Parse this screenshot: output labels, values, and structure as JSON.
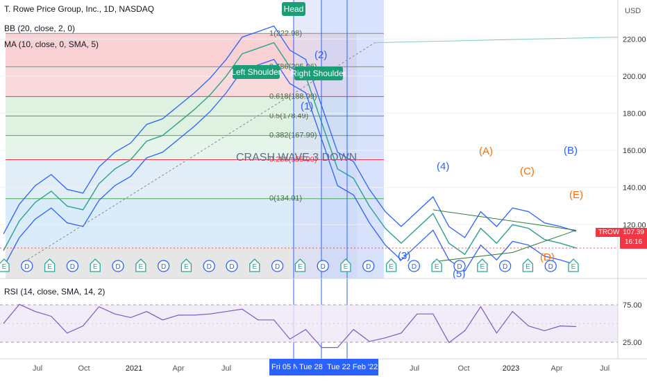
{
  "header": {
    "title": "T. Rowe Price Group, Inc., 1D, NASDAQ",
    "indicator_bb": "BB (20, close, 2, 0)",
    "indicator_ma": "MA (10, close, 0, SMA, 5)",
    "currency": "USD"
  },
  "rsi": {
    "label": "RSI (14, close, SMA, 14, 2)",
    "levels": [
      "75.00",
      "25.00"
    ]
  },
  "price": {
    "ticker": "TROW",
    "last": "107.39",
    "countdown": "16:16"
  },
  "annotations": {
    "head": "Head",
    "left_shoulder": "Left Shoulder",
    "right_shoulder": "Right Shoulder",
    "crash": "CRASH  WAVE 3 DOWN",
    "wave_1": "(1)",
    "wave_2": "(2)",
    "wave_3": "(3)",
    "wave_4": "(4)",
    "wave_5": "(5)",
    "wave_A": "(A)",
    "wave_B": "(B)",
    "wave_C": "(C)",
    "wave_D": "(D)",
    "wave_E": "(E)"
  },
  "fib_labels": [
    {
      "text": "1(222.98)",
      "value": 222.98
    },
    {
      "text": "0.786(205.06)",
      "value": 205.06
    },
    {
      "text": "0.618(188.99)",
      "value": 188.99
    },
    {
      "text": "0.5(178.49)",
      "value": 178.49
    },
    {
      "text": "0.382(167.99)",
      "value": 167.99
    },
    {
      "text": "0.236(155.00)",
      "value": 155.0
    },
    {
      "text": "0(134.01)",
      "value": 134.01
    }
  ],
  "date_flags": [
    "Fri 05 Nov '21",
    "Tue 28 Dec '21",
    "Tue 22 Feb '22"
  ],
  "event_markers": [
    "E",
    "D",
    "E",
    "D",
    "E",
    "D",
    "E",
    "D",
    "E",
    "D",
    "D",
    "E",
    "D",
    "E",
    "D",
    "E",
    "D",
    "E",
    "D",
    "E",
    "D",
    "E",
    "D",
    "E",
    "D",
    "E"
  ],
  "chart_data": {
    "type": "line",
    "y_axis": {
      "ticks": [
        120,
        140,
        160,
        180,
        200,
        220
      ],
      "range": [
        90,
        240
      ],
      "unit": "USD"
    },
    "x_axis": {
      "ticks": [
        "Jul",
        "Oct",
        "2021",
        "Apr",
        "Jul",
        "Oct",
        "Jul",
        "Oct",
        "2023",
        "Apr",
        "Jul"
      ]
    },
    "series": [
      {
        "x": [
          "2020-05",
          "2020-06",
          "2020-07",
          "2020-08",
          "2020-09",
          "2020-10",
          "2020-11",
          "2020-12",
          "2021-01",
          "2021-02",
          "2021-03",
          "2021-04",
          "2021-05",
          "2021-06",
          "2021-07",
          "2021-08",
          "2021-09",
          "2021-10",
          "2021-11",
          "2021-12",
          "2022-01",
          "2022-02",
          "2022-03",
          "2022-04",
          "2022-05",
          "2022-06",
          "2022-07",
          "2022-08",
          "2022-09",
          "2022-10",
          "2022-11",
          "2022-12",
          "2023-01",
          "2023-02",
          "2023-03",
          "2023-04",
          "2023-05"
        ],
        "values": [
          106,
          122,
          132,
          138,
          130,
          128,
          142,
          150,
          155,
          165,
          168,
          175,
          182,
          190,
          200,
          212,
          215,
          218,
          205,
          200,
          175,
          150,
          145,
          130,
          118,
          110,
          118,
          126,
          110,
          104,
          118,
          110,
          120,
          118,
          112,
          110,
          107.39
        ]
      }
    ],
    "rsi_axis": {
      "ticks": [
        75,
        25
      ],
      "range": [
        0,
        100
      ]
    }
  }
}
